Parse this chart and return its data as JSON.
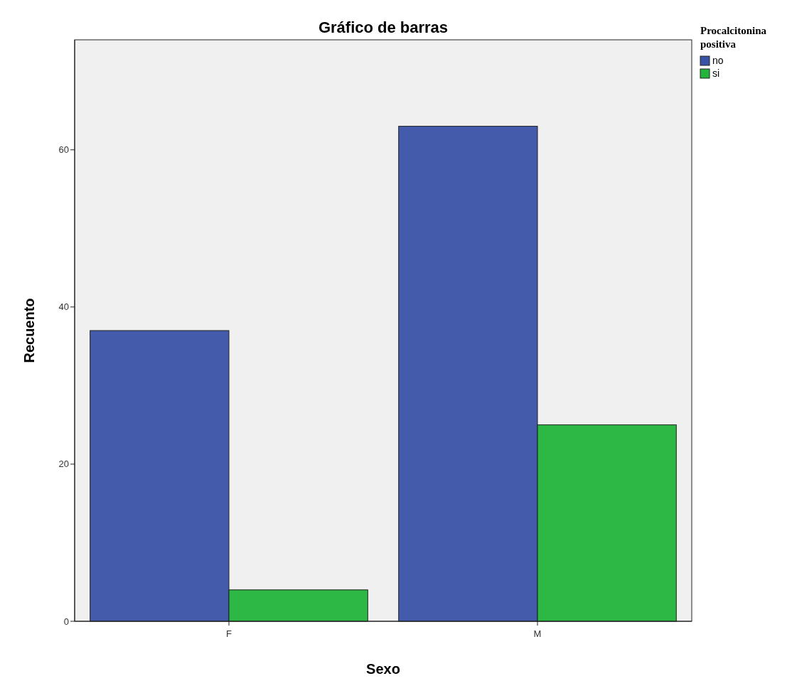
{
  "chart_data": {
    "type": "bar",
    "title": "Gráfico de barras",
    "xlabel": "Sexo",
    "ylabel": "Recuento",
    "legend_title": "Procalcitonina positiva",
    "categories": [
      "F",
      "M"
    ],
    "series": [
      {
        "name": "no",
        "color": "#3a52a6",
        "values": [
          37,
          63
        ]
      },
      {
        "name": "si",
        "color": "#22b33a",
        "values": [
          4,
          25
        ]
      }
    ],
    "ylim": [
      0,
      74
    ],
    "yticks": [
      0,
      20,
      40,
      60
    ],
    "legend": "top right",
    "grid": false
  }
}
